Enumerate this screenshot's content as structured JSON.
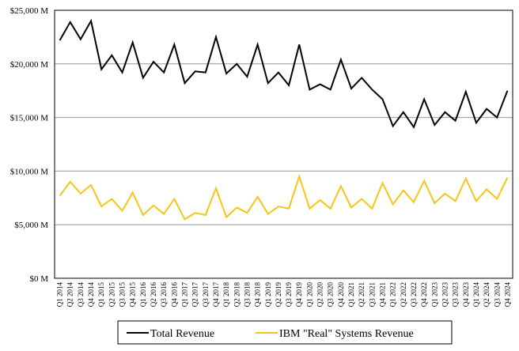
{
  "chart_data": {
    "type": "line",
    "ylim": [
      0,
      25000
    ],
    "y_tick_values": [
      0,
      5000,
      10000,
      15000,
      20000,
      25000
    ],
    "y_tick_labels": [
      "$0 M",
      "$5,000 M",
      "$10,000 M",
      "$15,000 M",
      "$20,000 M",
      "$25,000 M"
    ],
    "grid": "horizontal",
    "legend_position": "bottom",
    "categories": [
      "Q1 2014",
      "Q2 2014",
      "Q3 2014",
      "Q4 2014",
      "Q1 2015",
      "Q2 2015",
      "Q3 2015",
      "Q4 2015",
      "Q1 2016",
      "Q2 2016",
      "Q3 2016",
      "Q4 2016",
      "Q1 2017",
      "Q2 2017",
      "Q3 2017",
      "Q4 2017",
      "Q1 2018",
      "Q2 2018",
      "Q3 2018",
      "Q4 2018",
      "Q1 2019",
      "Q2 2019",
      "Q3 2019",
      "Q4 2019",
      "Q1 2020",
      "Q2 2020",
      "Q3 2020",
      "Q4 2020",
      "Q1 2021",
      "Q2 2021",
      "Q3 2021",
      "Q4 2021",
      "Q1 2022",
      "Q2 2022",
      "Q3 2022",
      "Q4 2022",
      "Q1 2023",
      "Q2 2023",
      "Q3 2023",
      "Q4 2023",
      "Q1 2024",
      "Q2 2024",
      "Q3 2024",
      "Q4 2024"
    ],
    "series": [
      {
        "name": "Total Revenue",
        "color": "#000000",
        "values": [
          22200,
          23900,
          22300,
          24000,
          19500,
          20800,
          19200,
          22000,
          18700,
          20200,
          19200,
          21800,
          18200,
          19300,
          19200,
          22500,
          19100,
          20000,
          18800,
          21800,
          18200,
          19200,
          18000,
          21800,
          17600,
          18100,
          17600,
          20400,
          17700,
          18700,
          17600,
          16700,
          14200,
          15500,
          14100,
          16700,
          14300,
          15500,
          14700,
          17400,
          14500,
          15800,
          15000,
          17500
        ]
      },
      {
        "name": "IBM \"Real\" Systems Revenue",
        "color": "#F5C518",
        "values": [
          7700,
          9000,
          7900,
          8700,
          6700,
          7400,
          6300,
          8000,
          5900,
          6800,
          6000,
          7400,
          5500,
          6100,
          5900,
          8400,
          5700,
          6600,
          6100,
          7600,
          6000,
          6700,
          6500,
          9500,
          6500,
          7300,
          6500,
          8600,
          6600,
          7400,
          6500,
          8900,
          6900,
          8200,
          7100,
          9100,
          7000,
          7900,
          7200,
          9300,
          7200,
          8300,
          7400,
          9400
        ]
      }
    ]
  }
}
